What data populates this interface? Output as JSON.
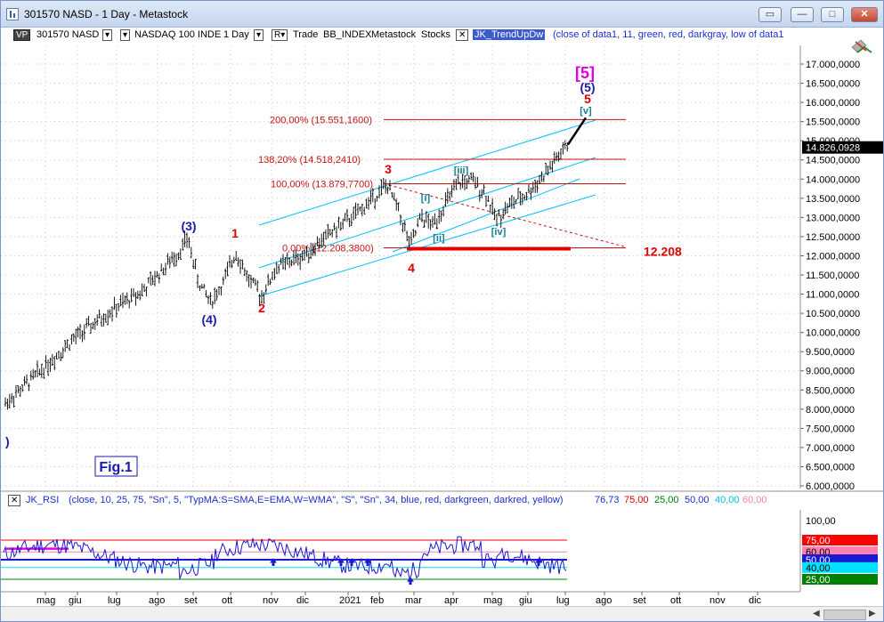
{
  "window": {
    "title": "301570 NASD - 1 Day - Metastock",
    "buttons": {
      "restore": "▭",
      "minimize": "—",
      "maximize": "□",
      "close": "✕"
    }
  },
  "toolbar": {
    "vp": "VP",
    "symbol": "301570 NASD",
    "dropdown_arrow": "▾",
    "index_name": "NASDAQ 100 INDE",
    "period": "1 Day",
    "r_button": "R▾",
    "trade_label": "Trade",
    "bb_index": "BB_INDEX",
    "metastock": "Metastock",
    "stocks": "Stocks",
    "close_x": "✕",
    "indicator_name": "JK_TrendUpDw",
    "indicator_params": "(close of data1,  11,  green,  red,  darkgray,  low of data1"
  },
  "icons": {
    "app": "chart-icon",
    "tools": "drawing-tools-icon"
  },
  "colors": {
    "price": "#000000",
    "wave_red": "#dd0000",
    "wave_blue": "#1a1aa8",
    "wave_teal": "#108090",
    "magenta": "#e000e0",
    "channel": "#00bfff",
    "fib_line": "#c81010",
    "support_bar": "#e00000",
    "rsi_line": "#1a1ad0",
    "rsi_75": "#ff0000",
    "rsi_25": "#008000",
    "rsi_60": "#ff7fae",
    "rsi_40": "#00e0ff",
    "label_black": "#000000"
  },
  "price_axis": {
    "labels": [
      "17.000,0000",
      "16.500,0000",
      "16.000,0000",
      "15.500,0000",
      "15.000,0000",
      "14.500,0000",
      "14.000,0000",
      "13.500,0000",
      "13.000,0000",
      "12.500,0000",
      "12.000,0000",
      "11.500,0000",
      "11.000,0000",
      "10.500,0000",
      "10.000,0000",
      "9.500,0000",
      "9.000,0000",
      "8.500,0000",
      "8.000,0000",
      "7.500,0000",
      "7.000,0000",
      "6.500,0000",
      "6.000,0000"
    ],
    "current_price": "14.826,0928"
  },
  "fib_levels": [
    {
      "label": "200,00% (15.551,1600)",
      "value": 15551.16
    },
    {
      "label": "138,20% (14.518,2410)",
      "value": 14518.241
    },
    {
      "label": "100,00% (13.879,7700)",
      "value": 13879.77
    },
    {
      "label": "0,00% (12.208,3800)",
      "value": 12208.38
    }
  ],
  "support_label": "12.208",
  "wave_labels": {
    "w3_blue": "(3)",
    "w4_blue": "(4)",
    "w5_blue": "(5)",
    "w5_big": "[5]",
    "w1": "1",
    "w2": "2",
    "w3": "3",
    "w4": "4",
    "w5": "5",
    "i": "[i]",
    "ii": "[ii]",
    "iii": "[iii]",
    "iv": "[iv]",
    "v": "[v]",
    "left_paren": ")"
  },
  "fig_label": "Fig.1",
  "rsi": {
    "close_x": "✕",
    "name": "JK_RSI",
    "params": "(close,  10,  25,  75,  \"Sn\",  5,  \"TypMA:S=SMA,E=EMA,W=WMA\",  \"S\",  \"Sn\",  34,  blue,  red,  darkgreen,  darkred,  yellow)",
    "value": "76,73",
    "l75": "75,00",
    "l25": "25,00",
    "l50": "50,00",
    "l40": "40,00",
    "l60": "60,00",
    "axis_100": "100,00",
    "tag_75": "75,00",
    "tag_60": "60,00",
    "tag_50": "50,00",
    "tag_40": "40,00",
    "tag_25": "25,00"
  },
  "time_axis": [
    "mag",
    "giu",
    "lug",
    "ago",
    "set",
    "ott",
    "nov",
    "dic",
    "2021",
    "feb",
    "mar",
    "apr",
    "mag",
    "giu",
    "lug",
    "ago",
    "set",
    "ott",
    "nov",
    "dic"
  ],
  "navigation": {
    "left_arrow": "◀",
    "right_arrow": "▶"
  }
}
